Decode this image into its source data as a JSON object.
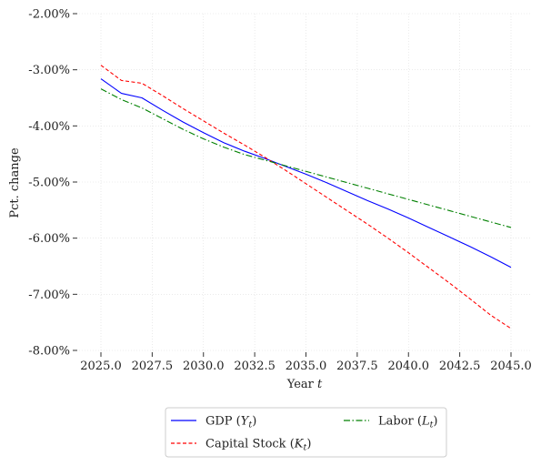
{
  "chart_data": {
    "type": "line",
    "title": "",
    "xlabel": "Year t",
    "ylabel": "Pct. change",
    "xlim": [
      2025.0,
      2045.0
    ],
    "ylim": [
      -8.0,
      -2.0
    ],
    "x_ticks": [
      2025.0,
      2027.5,
      2030.0,
      2032.5,
      2035.0,
      2037.5,
      2040.0,
      2042.5,
      2045.0
    ],
    "x_tick_labels": [
      "2025.0",
      "2027.5",
      "2030.0",
      "2032.5",
      "2035.0",
      "2037.5",
      "2040.0",
      "2042.5",
      "2045.0"
    ],
    "y_ticks": [
      -2.0,
      -3.0,
      -4.0,
      -5.0,
      -6.0,
      -7.0,
      -8.0
    ],
    "y_tick_labels": [
      "-2.00%",
      "-3.00%",
      "-4.00%",
      "-5.00%",
      "-6.00%",
      "-7.00%",
      "-8.00%"
    ],
    "grid": true,
    "legend_position": "below",
    "x": [
      2025,
      2026,
      2027,
      2028,
      2029,
      2030,
      2031,
      2032,
      2033,
      2034,
      2035,
      2036,
      2037,
      2038,
      2039,
      2040,
      2041,
      2042,
      2043,
      2044,
      2045
    ],
    "series": [
      {
        "name": "GDP (Y_t)",
        "legend_main": "GDP (",
        "legend_var": "Y",
        "legend_sub": "t",
        "legend_close": ")",
        "color": "#0000ff",
        "dash": "solid",
        "values": [
          -3.16,
          -3.42,
          -3.5,
          -3.72,
          -3.93,
          -4.12,
          -4.3,
          -4.45,
          -4.58,
          -4.72,
          -4.86,
          -5.01,
          -5.17,
          -5.33,
          -5.48,
          -5.64,
          -5.81,
          -5.98,
          -6.15,
          -6.33,
          -6.52
        ]
      },
      {
        "name": "Capital Stock (K_t)",
        "legend_main": "Capital Stock (",
        "legend_var": "K",
        "legend_sub": "t",
        "legend_close": ")",
        "color": "#ff0000",
        "dash": "dashed",
        "values": [
          -2.92,
          -3.19,
          -3.24,
          -3.46,
          -3.69,
          -3.91,
          -4.13,
          -4.34,
          -4.56,
          -4.79,
          -5.03,
          -5.27,
          -5.51,
          -5.75,
          -6.0,
          -6.26,
          -6.53,
          -6.8,
          -7.08,
          -7.37,
          -7.61
        ]
      },
      {
        "name": "Labor (L_t)",
        "legend_main": "Labor (",
        "legend_var": "L",
        "legend_sub": "t",
        "legend_close": ")",
        "color": "#008000",
        "dash": "dashdot",
        "values": [
          -3.34,
          -3.53,
          -3.68,
          -3.87,
          -4.06,
          -4.23,
          -4.38,
          -4.51,
          -4.61,
          -4.71,
          -4.81,
          -4.91,
          -5.01,
          -5.11,
          -5.21,
          -5.31,
          -5.41,
          -5.51,
          -5.61,
          -5.71,
          -5.81
        ]
      }
    ]
  }
}
